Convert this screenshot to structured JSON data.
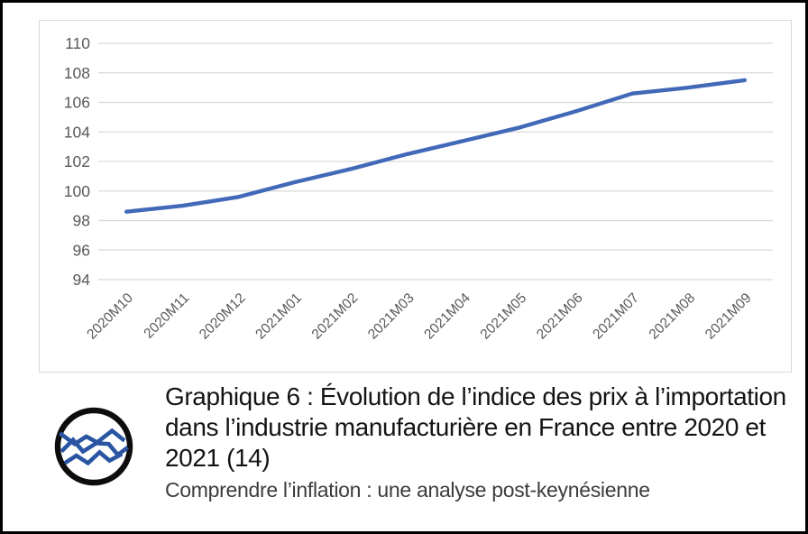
{
  "chart_data": {
    "type": "line",
    "categories": [
      "2020M10",
      "2020M11",
      "2020M12",
      "2021M01",
      "2021M02",
      "2021M03",
      "2021M04",
      "2021M05",
      "2021M06",
      "2021M07",
      "2021M08",
      "2021M09"
    ],
    "values": [
      98.6,
      99.0,
      99.6,
      100.6,
      101.5,
      102.5,
      103.4,
      104.3,
      105.4,
      106.6,
      107.0,
      107.5
    ],
    "title": "",
    "xlabel": "",
    "ylabel": "",
    "ylim": [
      94,
      110
    ],
    "ytick_step": 2,
    "grid": true,
    "legend": "none",
    "line_color": "#4169b8",
    "grid_color": "#d9d9d9",
    "axis_label_color": "#595959",
    "panel_border_color": "#d9d9d9"
  },
  "caption": {
    "title": "Graphique 6 : Évolution de l’indice des prix à l’importation dans l’industrie manufacturière en France entre 2020 et 2021 (14)",
    "subtitle": "Comprendre l’inflation : une analyse post-keynésienne"
  },
  "logo": {
    "name": "zigzag-chart-logo",
    "ring_color": "#0d0d0d",
    "line_color": "#2a55a2"
  }
}
